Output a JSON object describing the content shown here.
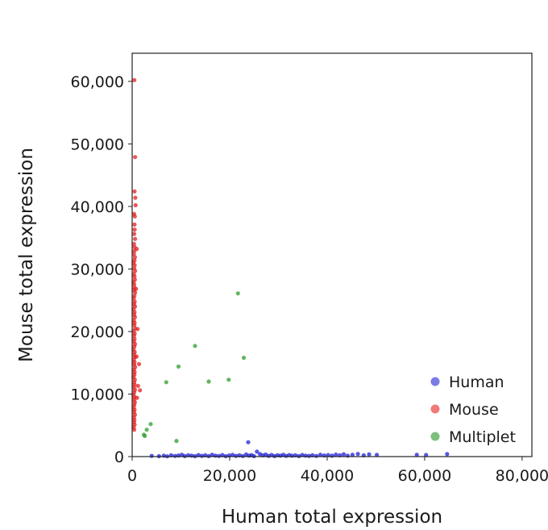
{
  "chart_data": {
    "type": "scatter",
    "title": "",
    "xlabel": "Human total expression",
    "ylabel": "Mouse total expression",
    "xlim": [
      0,
      82000
    ],
    "ylim": [
      0,
      64500
    ],
    "xticks": [
      0,
      20000,
      40000,
      60000,
      80000
    ],
    "xtick_labels": [
      "0",
      "20,000",
      "40,000",
      "60,000",
      "80,000"
    ],
    "yticks": [
      0,
      10000,
      20000,
      30000,
      40000,
      50000,
      60000
    ],
    "ytick_labels": [
      "0",
      "10,000",
      "20,000",
      "30,000",
      "40,000",
      "50,000",
      "60,000"
    ],
    "grid": false,
    "legend_position": "bottom-right",
    "series": [
      {
        "name": "Human",
        "color": "#1f1fd6",
        "legend_color": "#7b7be6",
        "points": [
          [
            4000,
            120
          ],
          [
            5500,
            60
          ],
          [
            6500,
            140
          ],
          [
            7200,
            40
          ],
          [
            8000,
            200
          ],
          [
            8800,
            100
          ],
          [
            9500,
            180
          ],
          [
            10200,
            300
          ],
          [
            10800,
            80
          ],
          [
            11500,
            220
          ],
          [
            12200,
            150
          ],
          [
            12900,
            60
          ],
          [
            13600,
            250
          ],
          [
            14300,
            120
          ],
          [
            15000,
            200
          ],
          [
            15700,
            80
          ],
          [
            16400,
            300
          ],
          [
            17100,
            160
          ],
          [
            17800,
            100
          ],
          [
            18500,
            240
          ],
          [
            19200,
            60
          ],
          [
            19900,
            180
          ],
          [
            20600,
            280
          ],
          [
            21300,
            120
          ],
          [
            22000,
            200
          ],
          [
            22700,
            90
          ],
          [
            23400,
            330
          ],
          [
            24000,
            150
          ],
          [
            24500,
            250
          ],
          [
            25000,
            60
          ],
          [
            25600,
            800
          ],
          [
            26200,
            400
          ],
          [
            26800,
            200
          ],
          [
            27400,
            320
          ],
          [
            28000,
            120
          ],
          [
            28600,
            260
          ],
          [
            29200,
            80
          ],
          [
            29800,
            220
          ],
          [
            30400,
            160
          ],
          [
            31000,
            300
          ],
          [
            31600,
            100
          ],
          [
            32200,
            240
          ],
          [
            32800,
            140
          ],
          [
            33500,
            200
          ],
          [
            34200,
            80
          ],
          [
            34900,
            260
          ],
          [
            35600,
            160
          ],
          [
            36300,
            120
          ],
          [
            37000,
            220
          ],
          [
            37800,
            100
          ],
          [
            38600,
            300
          ],
          [
            39400,
            180
          ],
          [
            40200,
            250
          ],
          [
            41000,
            140
          ],
          [
            41800,
            320
          ],
          [
            42600,
            200
          ],
          [
            43400,
            380
          ],
          [
            44200,
            160
          ],
          [
            45200,
            300
          ],
          [
            46300,
            420
          ],
          [
            47500,
            200
          ],
          [
            48600,
            360
          ],
          [
            50200,
            280
          ],
          [
            23800,
            2300
          ],
          [
            58400,
            300
          ],
          [
            60300,
            260
          ],
          [
            64600,
            400
          ]
        ]
      },
      {
        "name": "Mouse",
        "color": "#e61f1f",
        "legend_color": "#f07a7a",
        "points": [
          [
            450,
            60200
          ],
          [
            600,
            47900
          ],
          [
            500,
            42400
          ],
          [
            650,
            41400
          ],
          [
            700,
            40200
          ],
          [
            400,
            38800
          ],
          [
            550,
            38400
          ],
          [
            480,
            37100
          ],
          [
            520,
            36300
          ],
          [
            420,
            35600
          ],
          [
            600,
            34800
          ],
          [
            380,
            34000
          ],
          [
            500,
            33500
          ],
          [
            450,
            32900
          ],
          [
            350,
            32400
          ],
          [
            560,
            31900
          ],
          [
            480,
            31400
          ],
          [
            300,
            31000
          ],
          [
            520,
            30600
          ],
          [
            420,
            30100
          ],
          [
            600,
            29700
          ],
          [
            350,
            29200
          ],
          [
            480,
            28800
          ],
          [
            550,
            28300
          ],
          [
            300,
            27900
          ],
          [
            420,
            27500
          ],
          [
            500,
            27000
          ],
          [
            380,
            26600
          ],
          [
            600,
            26200
          ],
          [
            450,
            25700
          ],
          [
            330,
            25300
          ],
          [
            520,
            24800
          ],
          [
            400,
            24400
          ],
          [
            580,
            24000
          ],
          [
            300,
            23600
          ],
          [
            480,
            23100
          ],
          [
            420,
            22700
          ],
          [
            560,
            22300
          ],
          [
            350,
            21800
          ],
          [
            500,
            21400
          ],
          [
            440,
            21000
          ],
          [
            600,
            20500
          ],
          [
            320,
            20100
          ],
          [
            520,
            19700
          ],
          [
            400,
            19300
          ],
          [
            480,
            18800
          ],
          [
            360,
            18400
          ],
          [
            580,
            18000
          ],
          [
            440,
            17600
          ],
          [
            300,
            17100
          ],
          [
            520,
            16700
          ],
          [
            400,
            16300
          ],
          [
            560,
            15900
          ],
          [
            340,
            15500
          ],
          [
            480,
            15100
          ],
          [
            420,
            14700
          ],
          [
            600,
            14300
          ],
          [
            360,
            13900
          ],
          [
            500,
            13500
          ],
          [
            440,
            13100
          ],
          [
            300,
            12700
          ],
          [
            540,
            12300
          ],
          [
            400,
            11900
          ],
          [
            480,
            11500
          ],
          [
            350,
            11100
          ],
          [
            560,
            10700
          ],
          [
            420,
            10300
          ],
          [
            300,
            9900
          ],
          [
            500,
            9500
          ],
          [
            380,
            9100
          ],
          [
            540,
            8700
          ],
          [
            440,
            8300
          ],
          [
            320,
            7900
          ],
          [
            480,
            7500
          ],
          [
            400,
            7100
          ],
          [
            560,
            6700
          ],
          [
            340,
            6300
          ],
          [
            460,
            5900
          ],
          [
            380,
            5500
          ],
          [
            500,
            5100
          ],
          [
            300,
            4700
          ],
          [
            420,
            4300
          ],
          [
            1400,
            14800
          ],
          [
            1200,
            11300
          ],
          [
            1600,
            10600
          ],
          [
            1000,
            9400
          ],
          [
            900,
            16000
          ],
          [
            1100,
            20400
          ],
          [
            800,
            26800
          ],
          [
            950,
            33200
          ]
        ]
      },
      {
        "name": "Multiplet",
        "color": "#2e9e2e",
        "legend_color": "#7cc07c",
        "points": [
          [
            21700,
            26100
          ],
          [
            12900,
            17700
          ],
          [
            22900,
            15800
          ],
          [
            9500,
            14400
          ],
          [
            7000,
            11900
          ],
          [
            15700,
            12000
          ],
          [
            19800,
            12300
          ],
          [
            3800,
            5200
          ],
          [
            3000,
            4300
          ],
          [
            2400,
            3500
          ],
          [
            2600,
            3300
          ],
          [
            9100,
            2500
          ]
        ]
      }
    ]
  }
}
